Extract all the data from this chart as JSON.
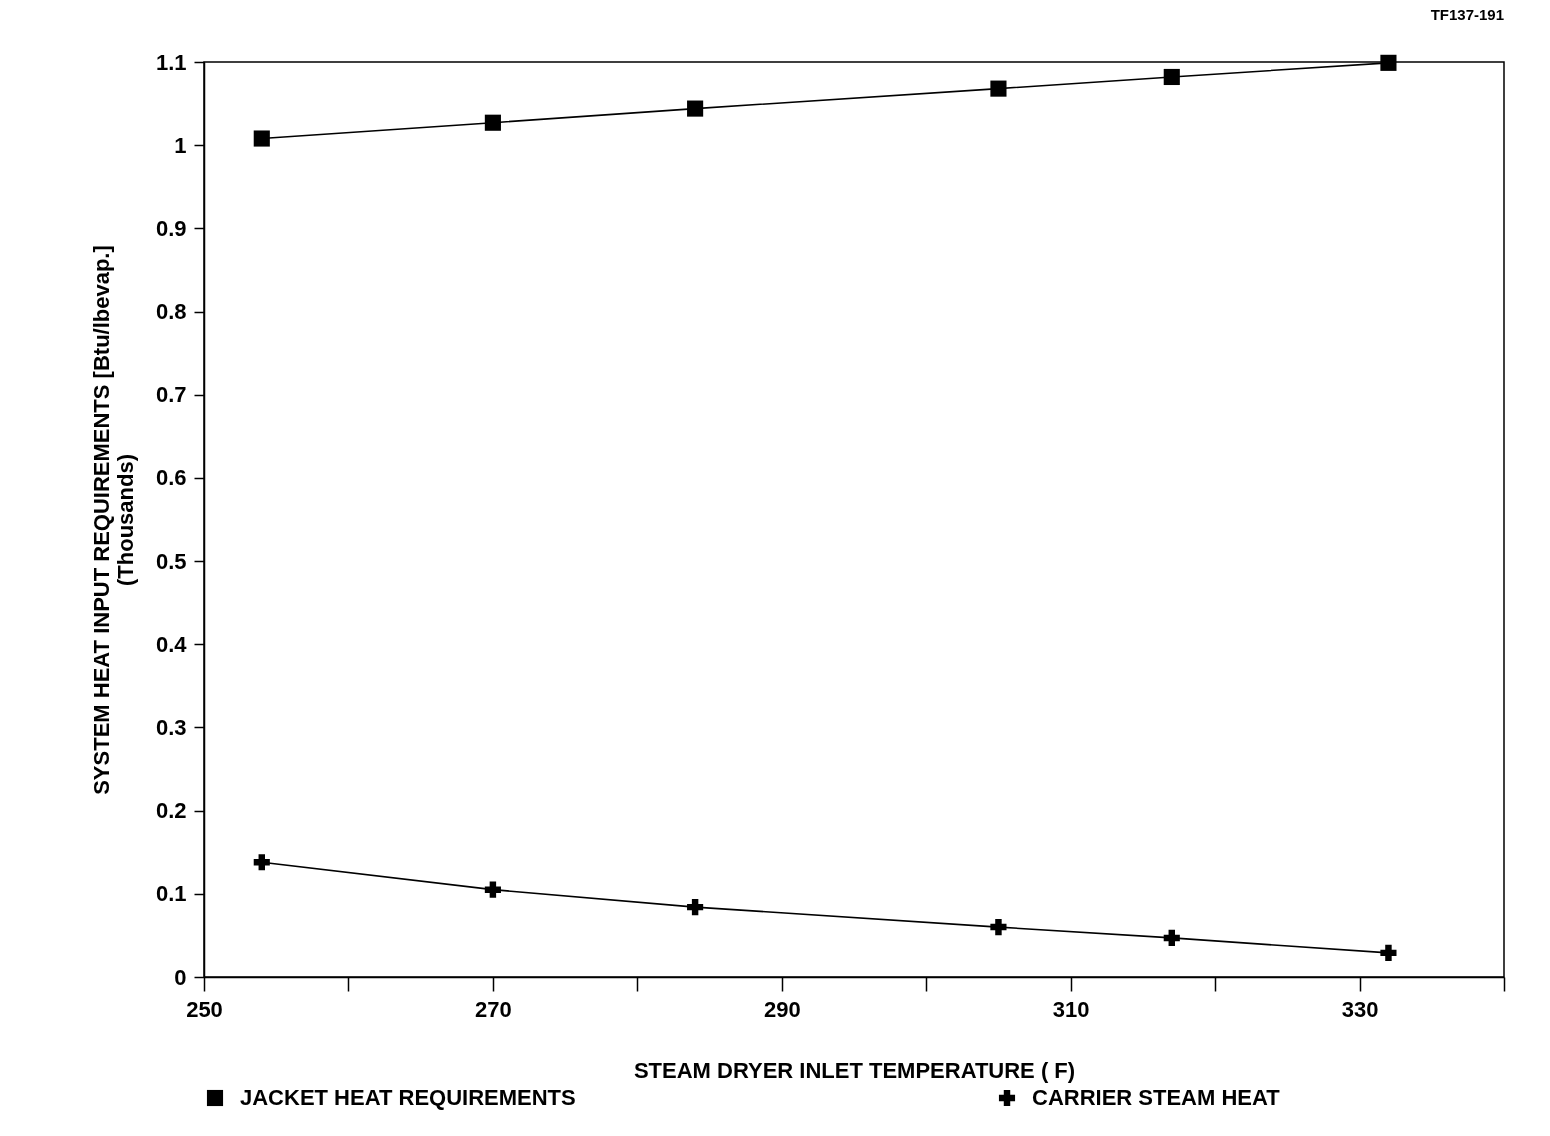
{
  "chart_data": {
    "type": "line",
    "xlabel": "STEAM DRYER INLET TEMPERATURE ( F)",
    "ylabel": "SYSTEM HEAT INPUT REQUIREMENTS [Btu/lbevap.]\n(Thousands)",
    "annotations": [
      "TF137-191"
    ],
    "x": [
      254,
      270,
      284,
      305,
      317,
      332
    ],
    "series": [
      {
        "name": "JACKET HEAT REQUIREMENTS",
        "color": "#000000",
        "marker": "square",
        "values": [
          1.008,
          1.027,
          1.044,
          1.068,
          1.082,
          1.099
        ]
      },
      {
        "name": "CARRIER STEAM HEAT",
        "color": "#000000",
        "marker": "cross",
        "values": [
          0.138,
          0.105,
          0.084,
          0.06,
          0.047,
          0.029
        ]
      }
    ],
    "xlim": [
      250,
      340
    ],
    "xticks": [
      250,
      {
        "value": 260,
        "label": null
      },
      270,
      {
        "value": 280,
        "label": null
      },
      290,
      {
        "value": 300,
        "label": null
      },
      310,
      {
        "value": 320,
        "label": null
      },
      330,
      {
        "value": 340,
        "label": null
      }
    ],
    "ylim": [
      0,
      1.1
    ],
    "yticks": [
      0,
      0.1,
      0.2,
      0.3,
      0.4,
      0.5,
      0.6,
      0.7,
      0.8,
      0.9,
      1,
      1.1
    ],
    "grid": false,
    "legend": "bottom"
  }
}
